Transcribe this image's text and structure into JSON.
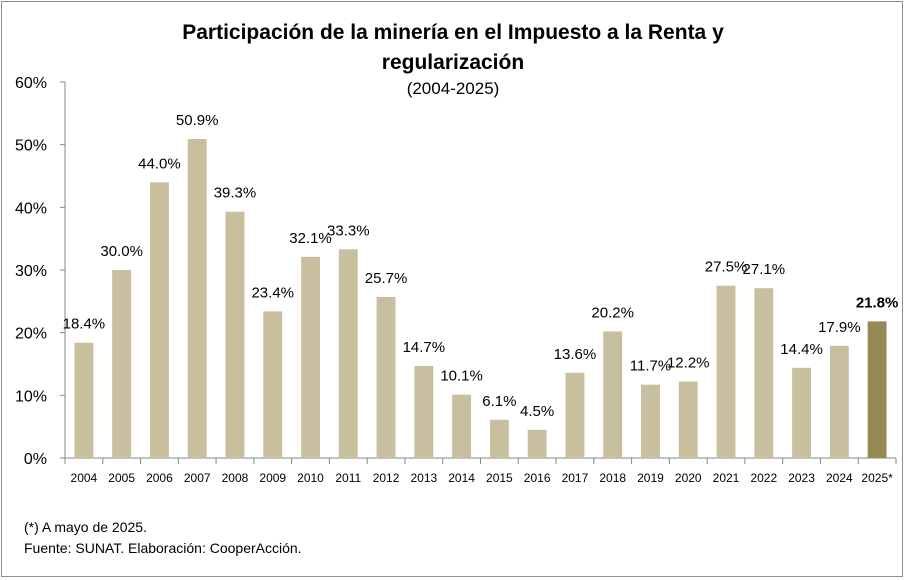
{
  "chart_data": {
    "type": "bar",
    "title_line1": "Participación de la minería en el Impuesto a la Renta y",
    "title_line2": "regularización",
    "subtitle": "(2004-2025)",
    "categories": [
      "2004",
      "2005",
      "2006",
      "2007",
      "2008",
      "2009",
      "2010",
      "2011",
      "2012",
      "2013",
      "2014",
      "2015",
      "2016",
      "2017",
      "2018",
      "2019",
      "2020",
      "2021",
      "2022",
      "2023",
      "2024",
      "2025*"
    ],
    "values": [
      18.4,
      30.0,
      44.0,
      50.9,
      39.3,
      23.4,
      32.1,
      33.3,
      25.7,
      14.7,
      10.1,
      6.1,
      4.5,
      13.6,
      20.2,
      11.7,
      12.2,
      27.5,
      27.1,
      14.4,
      17.9,
      21.8
    ],
    "labels": [
      "18.4%",
      "30.0%",
      "44.0%",
      "50.9%",
      "39.3%",
      "23.4%",
      "32.1%",
      "33.3%",
      "25.7%",
      "14.7%",
      "10.1%",
      "6.1%",
      "4.5%",
      "13.6%",
      "20.2%",
      "11.7%",
      "12.2%",
      "27.5%",
      "27.1%",
      "14.4%",
      "17.9%",
      "21.8%"
    ],
    "highlight_index": 21,
    "ylim": [
      0,
      60
    ],
    "yticks": [
      0,
      10,
      20,
      30,
      40,
      50,
      60
    ],
    "ytick_labels": [
      "0%",
      "10%",
      "20%",
      "30%",
      "40%",
      "50%",
      "60%"
    ],
    "bar_color": "#c7bf9e",
    "highlight_color": "#958b52",
    "grid": false
  },
  "notes": {
    "footnote": "(*) A mayo de 2025.",
    "source": "Fuente: SUNAT. Elaboración: CooperAcción."
  }
}
